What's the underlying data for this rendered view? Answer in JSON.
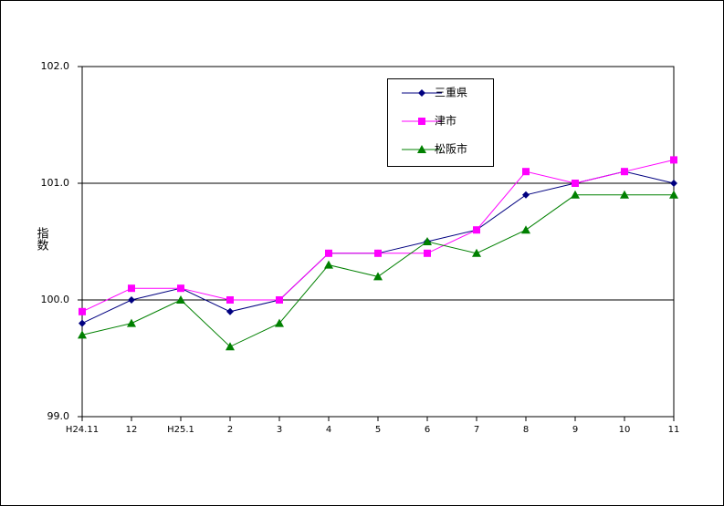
{
  "chart_data": {
    "type": "line",
    "y_label": "指数",
    "categories": [
      "H24.11",
      "12",
      "H25.1",
      "2",
      "3",
      "4",
      "5",
      "6",
      "7",
      "8",
      "9",
      "10",
      "11"
    ],
    "series": [
      {
        "name": "三重県",
        "color": "#000080",
        "marker": "diamond",
        "values": [
          99.8,
          100.0,
          100.1,
          99.9,
          100.0,
          100.4,
          100.4,
          100.5,
          100.6,
          100.9,
          101.0,
          101.1,
          101.0
        ]
      },
      {
        "name": "津市",
        "color": "#ff00ff",
        "marker": "square",
        "values": [
          99.9,
          100.1,
          100.1,
          100.0,
          100.0,
          100.4,
          100.4,
          100.4,
          100.6,
          101.1,
          101.0,
          101.1,
          101.2
        ]
      },
      {
        "name": "松阪市",
        "color": "#008000",
        "marker": "triangle",
        "values": [
          99.7,
          99.8,
          100.0,
          99.6,
          99.8,
          100.3,
          100.2,
          100.5,
          100.4,
          100.6,
          100.9,
          100.9,
          100.9
        ]
      }
    ],
    "ylim": [
      99,
      102
    ],
    "yticks": [
      {
        "value": 99,
        "label": "99.0"
      },
      {
        "value": 100,
        "label": "100.0"
      },
      {
        "value": 101,
        "label": "101.0"
      },
      {
        "value": 102,
        "label": "102.0"
      }
    ],
    "grid": true
  }
}
